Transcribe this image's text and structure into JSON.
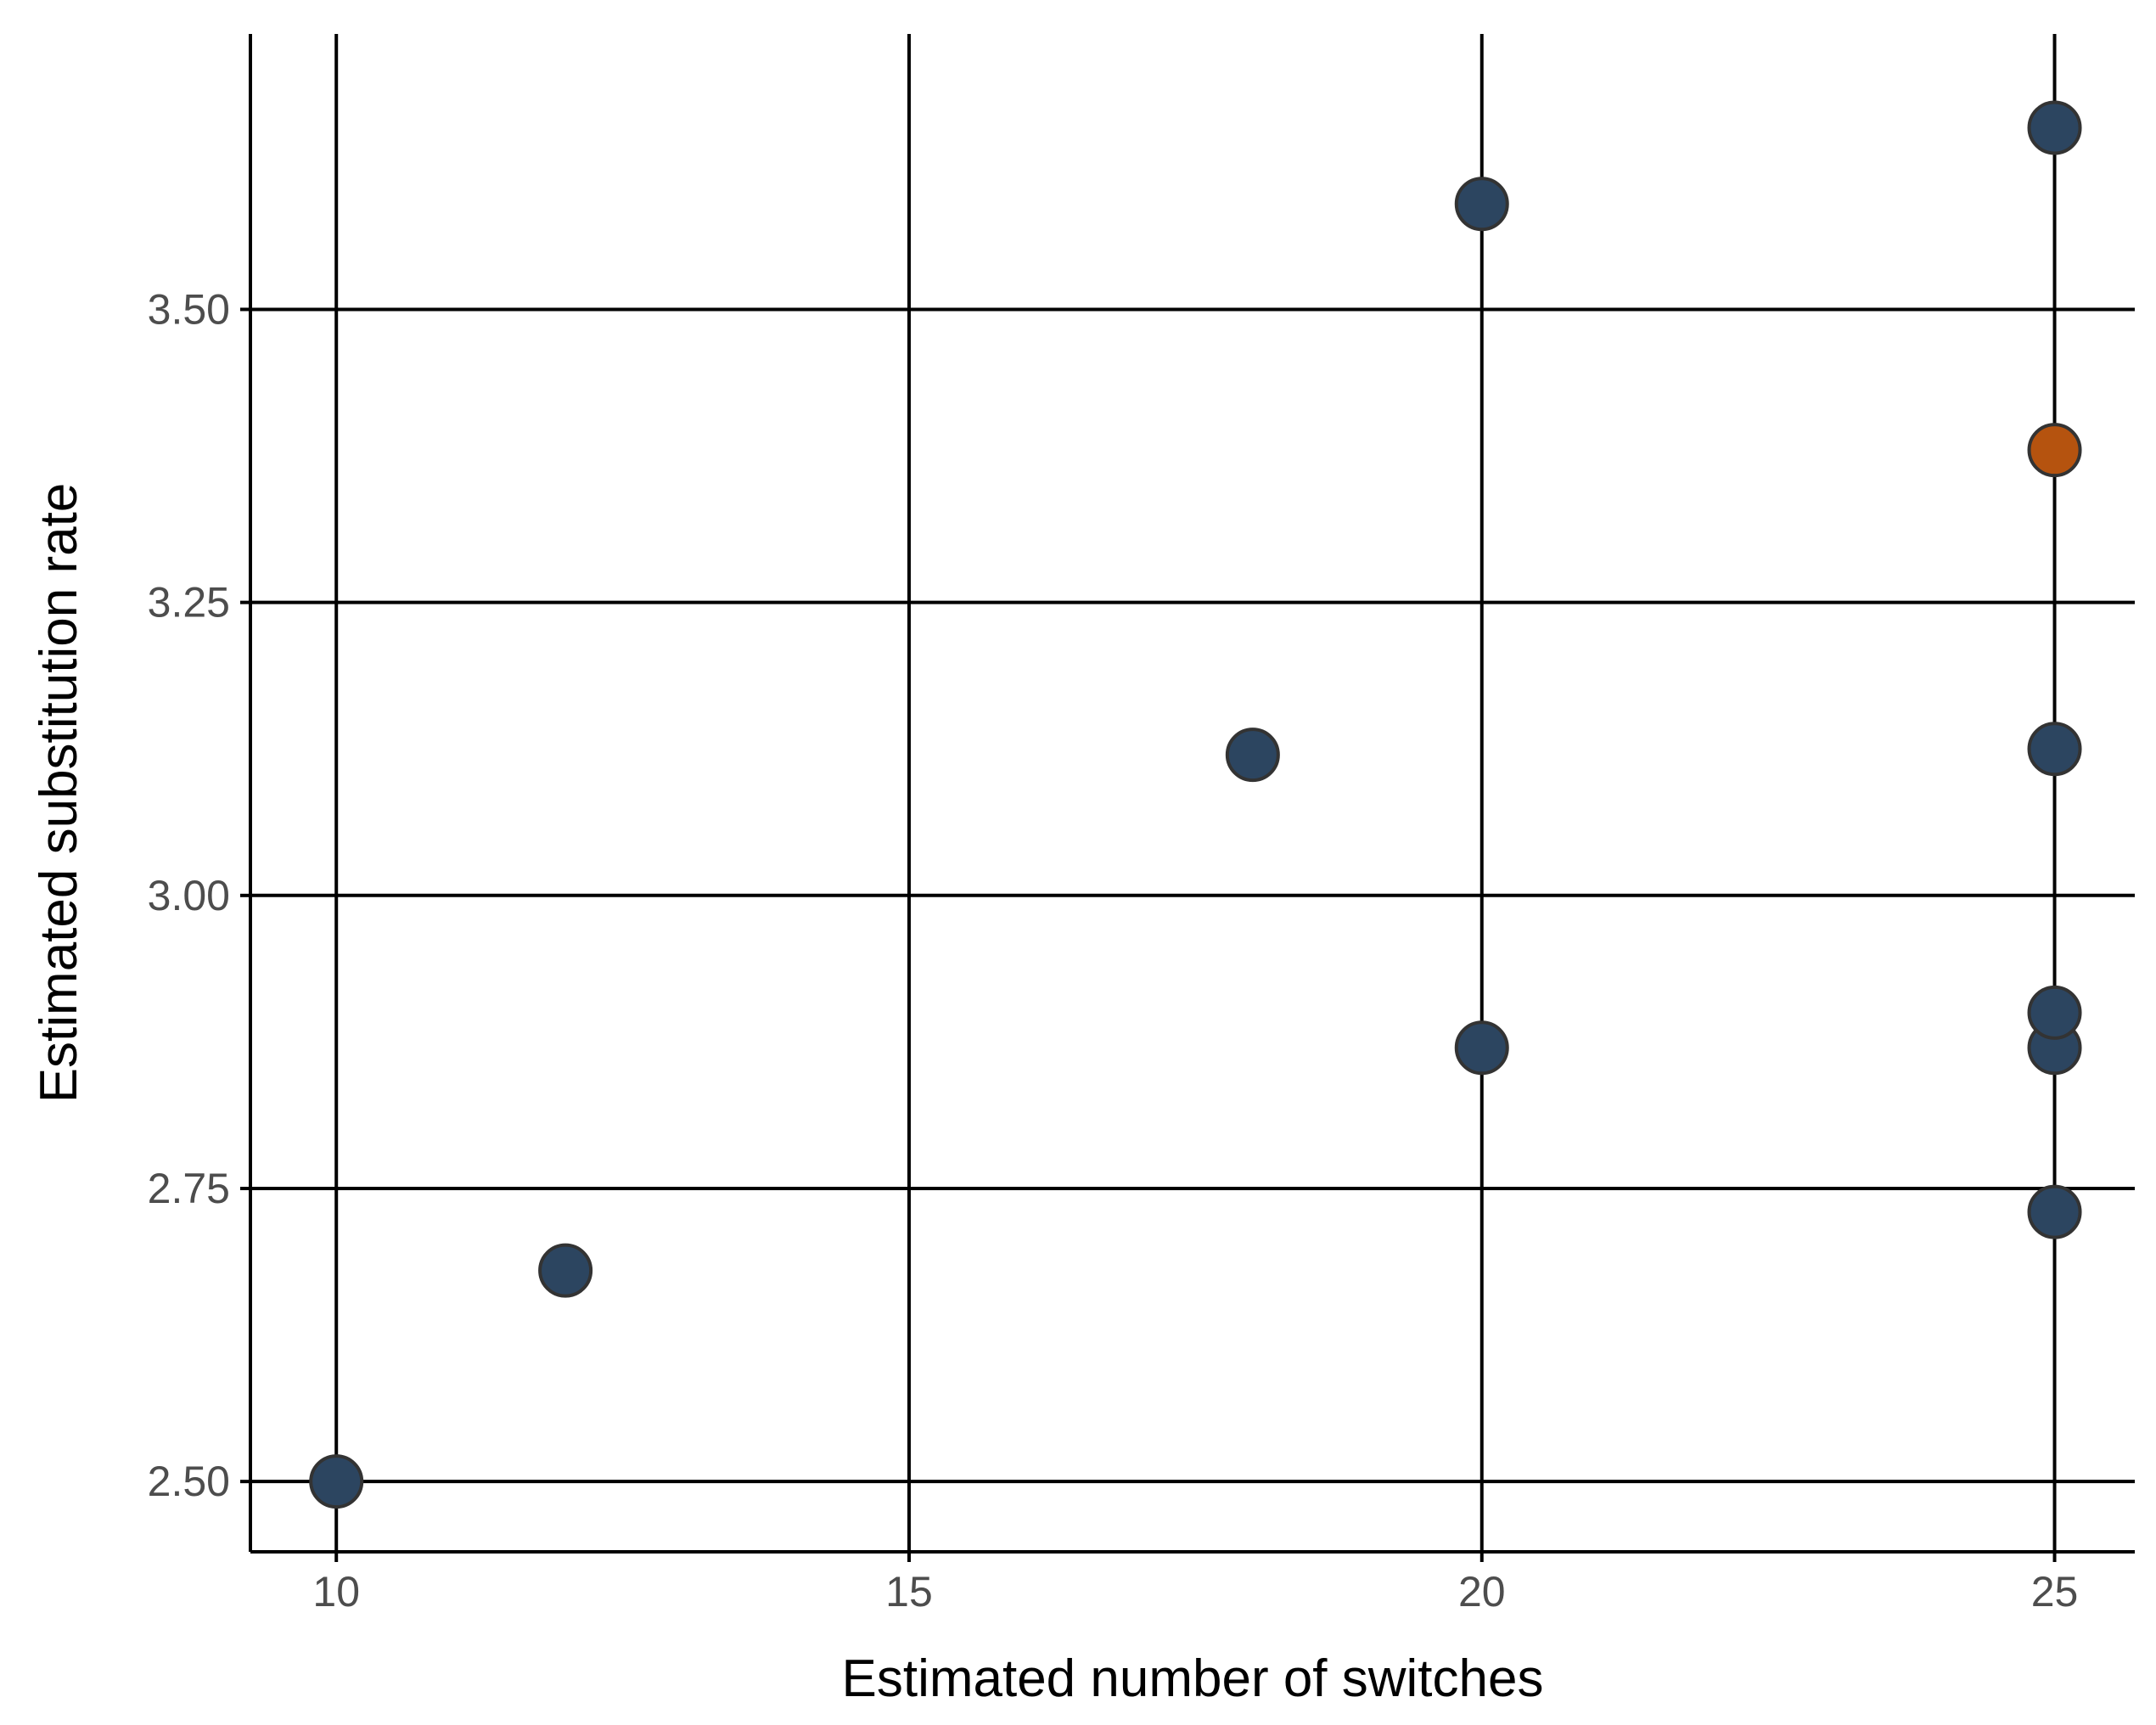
{
  "chart_data": {
    "type": "scatter",
    "title": "",
    "xlabel": "Estimated number of switches",
    "ylabel": "Estimated substitution rate",
    "xlim": [
      9.25,
      25.7
    ],
    "ylim": [
      2.44,
      3.735
    ],
    "x_ticks": [
      10,
      15,
      20,
      25
    ],
    "y_ticks": [
      2.5,
      2.75,
      3.0,
      3.25,
      3.5
    ],
    "x_tick_labels": [
      "10",
      "15",
      "20",
      "25"
    ],
    "y_tick_labels": [
      "2.50",
      "2.75",
      "3.00",
      "3.25",
      "3.50"
    ],
    "grid": true,
    "legend": "none",
    "colors": {
      "default": "#2c4560",
      "highlight": "#b5530f",
      "outline": "#333333"
    },
    "points": [
      {
        "x": 10,
        "y": 2.5,
        "highlight": false
      },
      {
        "x": 12,
        "y": 2.68,
        "highlight": false
      },
      {
        "x": 18,
        "y": 3.12,
        "highlight": false
      },
      {
        "x": 20,
        "y": 2.87,
        "highlight": false
      },
      {
        "x": 20,
        "y": 3.59,
        "highlight": false
      },
      {
        "x": 25,
        "y": 2.73,
        "highlight": false
      },
      {
        "x": 25,
        "y": 2.87,
        "highlight": false
      },
      {
        "x": 25,
        "y": 2.9,
        "highlight": false
      },
      {
        "x": 25,
        "y": 3.125,
        "highlight": false
      },
      {
        "x": 25,
        "y": 3.38,
        "highlight": true
      },
      {
        "x": 25,
        "y": 3.655,
        "highlight": false
      }
    ]
  }
}
